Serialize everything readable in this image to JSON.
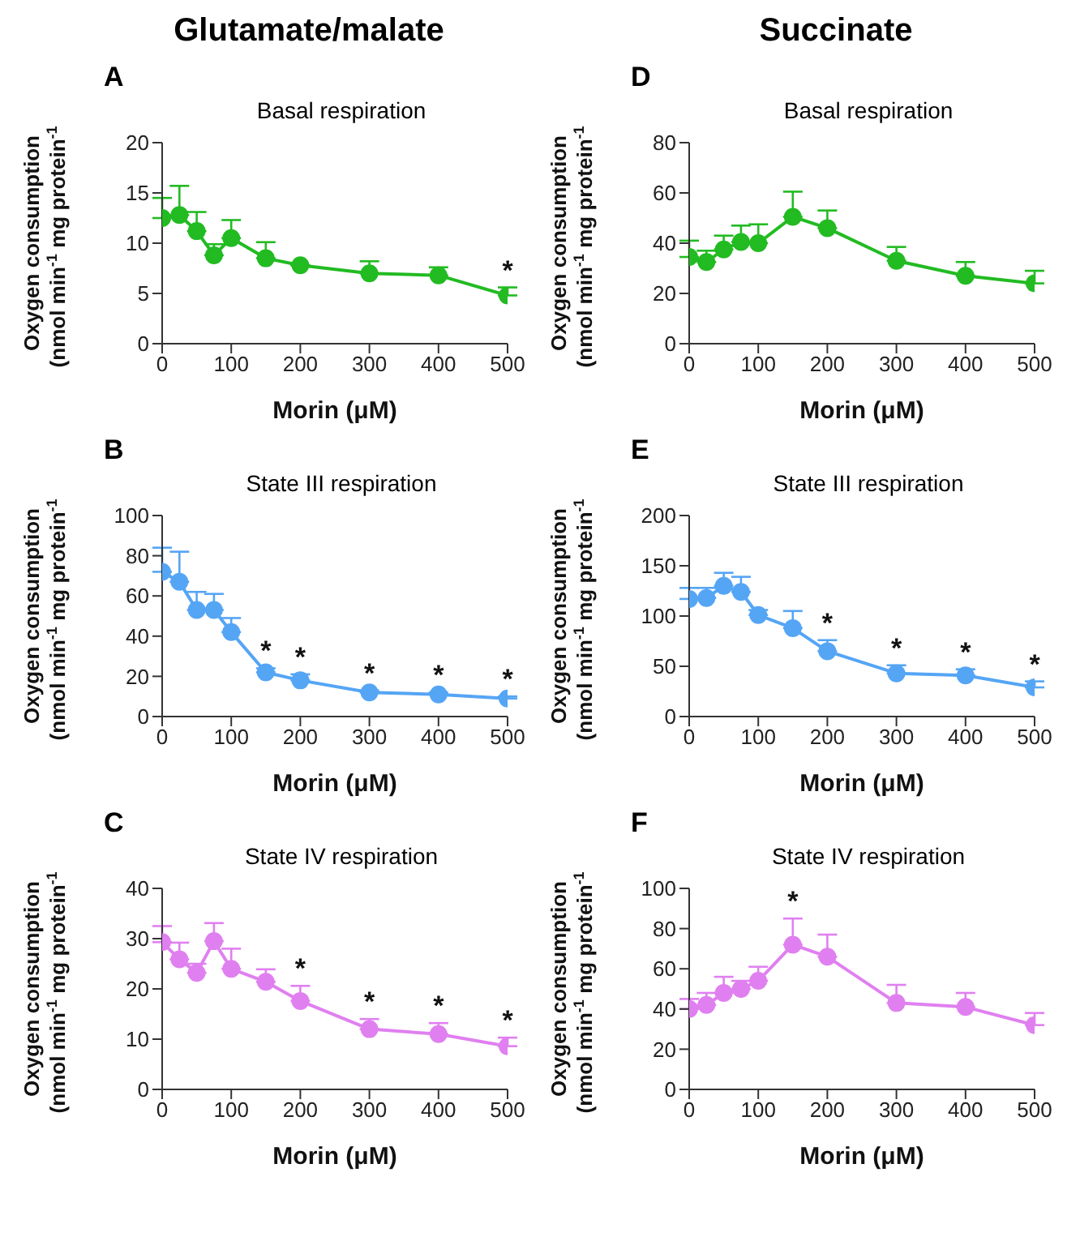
{
  "chart_data": [
    {
      "type": "line",
      "title": "Basal respiration",
      "xlabel": "Morin (μM)",
      "ylabel": "Oxygen consumption\n(nmol min$^{-1}$ mg protein$^{-1}$)",
      "annotations": [
        "Glutamate/malate",
        "A",
        {
          "text": "*",
          "x": 500,
          "y": 5.6
        }
      ],
      "x": [
        0,
        25,
        50,
        75,
        100,
        150,
        200,
        300,
        400,
        500
      ],
      "xlim": [
        0,
        500
      ],
      "xticks": [
        0,
        100,
        200,
        300,
        400,
        500
      ],
      "ylim": [
        0,
        20
      ],
      "yticks": [
        0,
        5,
        10,
        15,
        20
      ],
      "marker": "circle",
      "series": [
        {
          "color": "#22bb22",
          "values": [
            12.5,
            12.8,
            11.2,
            8.8,
            10.5,
            8.5,
            7.8,
            7.0,
            6.8,
            4.8
          ],
          "errors": [
            [
              12.5,
              14.5
            ],
            [
              12.8,
              15.7
            ],
            [
              11.2,
              13.1
            ],
            [
              8.8,
              9.9
            ],
            [
              10.5,
              12.3
            ],
            [
              8.5,
              10.1
            ],
            null,
            [
              7.0,
              8.2
            ],
            [
              6.8,
              7.6
            ],
            [
              4.8,
              5.6
            ]
          ]
        }
      ]
    },
    {
      "type": "line",
      "title": "Basal respiration",
      "xlabel": "Morin (μM)",
      "ylabel": "Oxygen consumption\n(nmol min$^{-1}$ mg protein$^{-1}$)",
      "annotations": [
        "Succinate",
        "D"
      ],
      "x": [
        0,
        25,
        50,
        75,
        100,
        150,
        200,
        300,
        400,
        500
      ],
      "xlim": [
        0,
        500
      ],
      "xticks": [
        0,
        100,
        200,
        300,
        400,
        500
      ],
      "ylim": [
        0,
        80
      ],
      "yticks": [
        0,
        20,
        40,
        60,
        80
      ],
      "marker": "circle",
      "series": [
        {
          "color": "#22bb22",
          "values": [
            34.5,
            32.5,
            37.5,
            40.5,
            40,
            50.5,
            46,
            33,
            27,
            24
          ],
          "errors": [
            [
              34.5,
              41
            ],
            [
              32.5,
              37
            ],
            [
              37.5,
              43
            ],
            [
              40.5,
              47
            ],
            [
              40,
              47.5
            ],
            [
              50.5,
              60.5
            ],
            [
              46,
              53
            ],
            [
              33,
              38.5
            ],
            [
              27,
              32.5
            ],
            [
              24,
              29
            ]
          ]
        }
      ]
    },
    {
      "type": "line",
      "title": "State III respiration",
      "xlabel": "Morin (μM)",
      "ylabel": "Oxygen consumption\n(nmol min$^{-1}$ mg protein$^{-1}$)",
      "annotations": [
        "B",
        {
          "text": "*",
          "x": 150,
          "y": 24
        },
        {
          "text": "*",
          "x": 200,
          "y": 21
        },
        {
          "text": "*",
          "x": 300,
          "y": 13
        },
        {
          "text": "*",
          "x": 400,
          "y": 12
        },
        {
          "text": "*",
          "x": 500,
          "y": 10
        }
      ],
      "x": [
        0,
        25,
        50,
        75,
        100,
        150,
        200,
        300,
        400,
        500
      ],
      "xlim": [
        0,
        500
      ],
      "xticks": [
        0,
        100,
        200,
        300,
        400,
        500
      ],
      "ylim": [
        0,
        100
      ],
      "yticks": [
        0,
        20,
        40,
        60,
        80,
        100
      ],
      "marker": "circle",
      "series": [
        {
          "color": "#55a5f5",
          "values": [
            72,
            67,
            53,
            53,
            42,
            22,
            18,
            12,
            11,
            9
          ],
          "errors": [
            [
              72,
              84
            ],
            [
              67,
              82
            ],
            [
              53,
              62
            ],
            [
              53,
              61
            ],
            [
              42,
              49
            ],
            [
              22,
              24
            ],
            [
              18,
              21
            ],
            [
              12,
              13
            ],
            [
              11,
              12
            ],
            [
              9,
              10
            ]
          ]
        }
      ]
    },
    {
      "type": "line",
      "title": "State III respiration",
      "xlabel": "Morin (μM)",
      "ylabel": "Oxygen consumption\n(nmol min$^{-1}$ mg protein$^{-1}$)",
      "annotations": [
        "E",
        {
          "text": "*",
          "x": 200,
          "y": 76
        },
        {
          "text": "*",
          "x": 300,
          "y": 51
        },
        {
          "text": "*",
          "x": 400,
          "y": 47
        },
        {
          "text": "*",
          "x": 500,
          "y": 35
        }
      ],
      "x": [
        0,
        25,
        50,
        75,
        100,
        150,
        200,
        300,
        400,
        500
      ],
      "xlim": [
        0,
        500
      ],
      "xticks": [
        0,
        100,
        200,
        300,
        400,
        500
      ],
      "ylim": [
        0,
        200
      ],
      "yticks": [
        0,
        50,
        100,
        150,
        200
      ],
      "marker": "circle",
      "series": [
        {
          "color": "#55a5f5",
          "values": [
            117,
            118,
            130,
            124,
            101,
            88,
            65,
            43,
            41,
            29
          ],
          "errors": [
            [
              117,
              128
            ],
            [
              118,
              128
            ],
            [
              130,
              143
            ],
            [
              124,
              139
            ],
            [
              101,
              106
            ],
            [
              88,
              105
            ],
            [
              65,
              76
            ],
            [
              43,
              51
            ],
            [
              41,
              47
            ],
            [
              29,
              35
            ]
          ]
        }
      ]
    },
    {
      "type": "line",
      "title": "State IV respiration",
      "xlabel": "Morin (μM)",
      "ylabel": "Oxygen consumption\n(nmol min$^{-1}$ mg protein$^{-1}$)",
      "annotations": [
        "C",
        {
          "text": "*",
          "x": 200,
          "y": 20.6
        },
        {
          "text": "*",
          "x": 300,
          "y": 14
        },
        {
          "text": "*",
          "x": 400,
          "y": 13.2
        },
        {
          "text": "*",
          "x": 500,
          "y": 10.3
        }
      ],
      "x": [
        0,
        25,
        50,
        75,
        100,
        150,
        200,
        300,
        400,
        500
      ],
      "xlim": [
        0,
        500
      ],
      "xticks": [
        0,
        100,
        200,
        300,
        400,
        500
      ],
      "ylim": [
        0,
        40
      ],
      "yticks": [
        0,
        10,
        20,
        30,
        40
      ],
      "marker": "circle",
      "series": [
        {
          "color": "#e080f0",
          "values": [
            29.3,
            25.9,
            23.2,
            29.5,
            24,
            21.4,
            17.6,
            12,
            11,
            8.6
          ],
          "errors": [
            [
              29.3,
              32.5
            ],
            [
              25.9,
              29.2
            ],
            [
              23.2,
              25
            ],
            [
              29.5,
              33.1
            ],
            [
              24,
              28
            ],
            [
              21.4,
              23.9
            ],
            [
              17.6,
              20.6
            ],
            [
              12,
              14
            ],
            [
              11,
              13.2
            ],
            [
              8.6,
              10.3
            ]
          ]
        }
      ]
    },
    {
      "type": "line",
      "title": "State IV respiration",
      "xlabel": "Morin (μM)",
      "ylabel": "Oxygen consumption\n(nmol min$^{-1}$ mg protein$^{-1}$)",
      "annotations": [
        "F",
        {
          "text": "*",
          "x": 150,
          "y": 85
        }
      ],
      "x": [
        0,
        25,
        50,
        75,
        100,
        150,
        200,
        300,
        400,
        500
      ],
      "xlim": [
        0,
        500
      ],
      "xticks": [
        0,
        100,
        200,
        300,
        400,
        500
      ],
      "ylim": [
        0,
        100
      ],
      "yticks": [
        0,
        20,
        40,
        60,
        80,
        100
      ],
      "marker": "circle",
      "series": [
        {
          "color": "#e080f0",
          "values": [
            40,
            42,
            48,
            50,
            54,
            72,
            66,
            43,
            41,
            32
          ],
          "errors": [
            [
              40,
              45
            ],
            [
              42,
              48
            ],
            [
              48,
              56
            ],
            [
              50,
              54
            ],
            [
              54,
              61
            ],
            [
              72,
              85
            ],
            [
              66,
              77
            ],
            [
              43,
              52
            ],
            [
              41,
              48
            ],
            [
              32,
              38
            ]
          ]
        }
      ]
    }
  ]
}
